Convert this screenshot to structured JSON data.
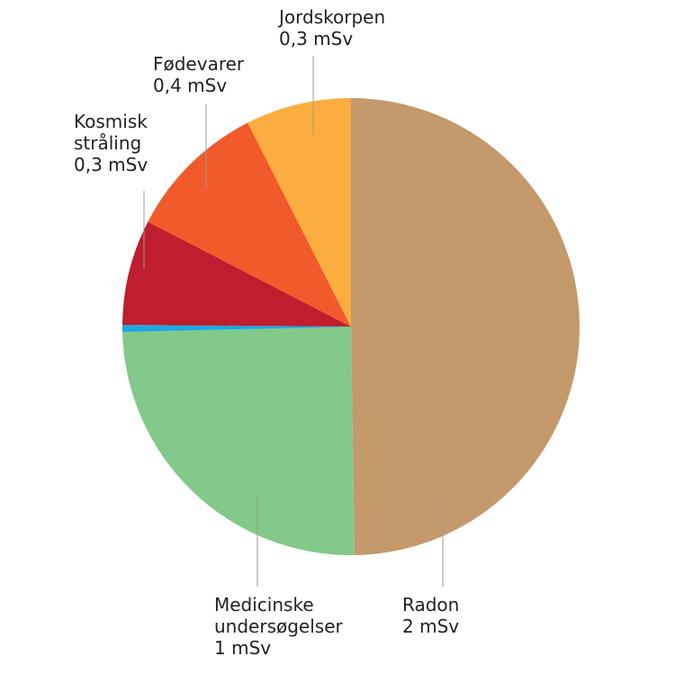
{
  "chart_data": {
    "type": "pie",
    "title": "",
    "start_angle_deg": 0,
    "direction": "clockwise",
    "slices": [
      {
        "label_lines": [
          "Radon",
          "2 mSv"
        ],
        "value": 2.0,
        "color": "#c4996b"
      },
      {
        "label_lines": [
          "Medicinske",
          "undersøgelser",
          "1 mSv"
        ],
        "value": 1.0,
        "color": "#82c98a"
      },
      {
        "label_lines": [],
        "value": 0.02,
        "color": "#1ea7e1"
      },
      {
        "label_lines": [
          "Kosmisk",
          "stråling",
          "0,3 mSv"
        ],
        "value": 0.3,
        "color": "#be1e2d"
      },
      {
        "label_lines": [
          "Fødevarer",
          "0,4 mSv"
        ],
        "value": 0.4,
        "color": "#f15a2b"
      },
      {
        "label_lines": [
          "Jordskorpen",
          "0,3 mSv"
        ],
        "value": 0.3,
        "color": "#fbae3f"
      }
    ]
  }
}
